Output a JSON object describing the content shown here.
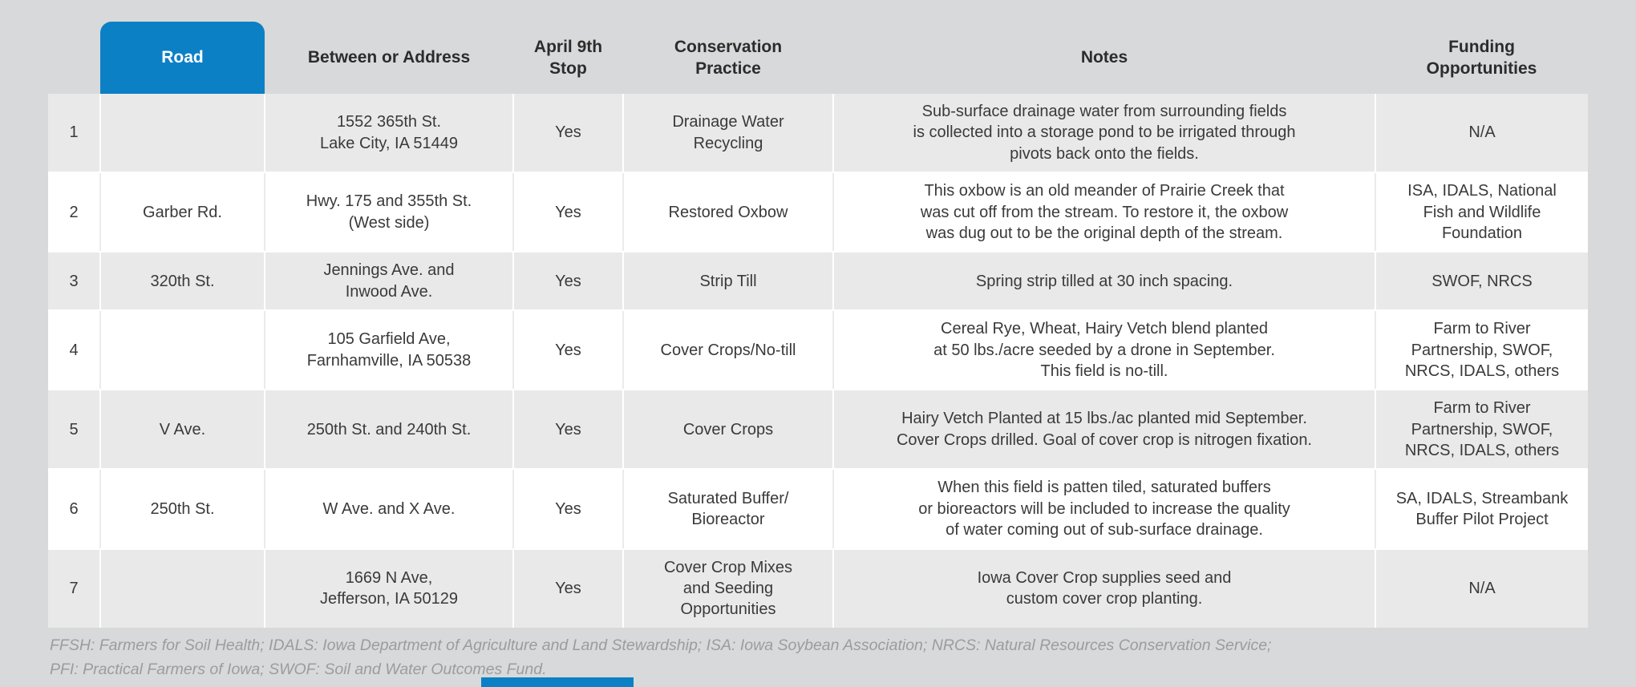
{
  "colors": {
    "page_bg": "#d8d9da",
    "row_odd_bg": "#e9e9e9",
    "row_even_bg": "#ffffff",
    "accent_blue": "#0b80c5",
    "header_text": "#2c2c2c",
    "cell_text": "#3a3a3a",
    "footnote_text": "#9b9c9e"
  },
  "table": {
    "header": {
      "num": "",
      "road": "Road",
      "between": "Between or Address",
      "stop": "April 9th\nStop",
      "practice": "Conservation\nPractice",
      "notes": "Notes",
      "funding": "Funding\nOpportunities"
    },
    "rows": [
      {
        "num": "1",
        "road": "",
        "between": "1552 365th St.\nLake City, IA 51449",
        "stop": "Yes",
        "practice": "Drainage Water\nRecycling",
        "notes": "Sub-surface drainage water from surrounding fields\nis collected into a storage pond to be irrigated through\npivots back onto the fields.",
        "funding": "N/A"
      },
      {
        "num": "2",
        "road": "Garber Rd.",
        "between": "Hwy. 175 and 355th St.\n(West side)",
        "stop": "Yes",
        "practice": "Restored Oxbow",
        "notes": "This oxbow is an old meander of Prairie Creek that\nwas cut off from the stream. To restore it, the oxbow\nwas dug out to be the original depth of the stream.",
        "funding": "ISA, IDALS, National\nFish and Wildlife\nFoundation"
      },
      {
        "num": "3",
        "road": "320th St.",
        "between": "Jennings Ave. and\nInwood Ave.",
        "stop": "Yes",
        "practice": "Strip Till",
        "notes": "Spring strip tilled at 30 inch spacing.",
        "funding": "SWOF, NRCS"
      },
      {
        "num": "4",
        "road": "",
        "between": "105 Garfield Ave,\nFarnhamville, IA 50538",
        "stop": "Yes",
        "practice": "Cover Crops/No-till",
        "notes": "Cereal Rye, Wheat, Hairy Vetch blend planted\nat 50 lbs./acre seeded by a drone in September.\nThis field is no-till.",
        "funding": "Farm to River\nPartnership, SWOF,\nNRCS, IDALS, others"
      },
      {
        "num": "5",
        "road": "V Ave.",
        "between": "250th St. and 240th St.",
        "stop": "Yes",
        "practice": "Cover Crops",
        "notes": "Hairy Vetch Planted at 15 lbs./ac planted mid September.\nCover Crops drilled. Goal of cover crop is nitrogen fixation.",
        "funding": "Farm to River\nPartnership, SWOF,\nNRCS, IDALS, others"
      },
      {
        "num": "6",
        "road": "250th St.",
        "between": "W Ave. and X Ave.",
        "stop": "Yes",
        "practice": "Saturated Buffer/\nBioreactor",
        "notes": "When this field is patten tiled, saturated buffers\nor bioreactors will be included to increase the quality\nof water coming out of sub-surface drainage.",
        "funding": "SA, IDALS, Streambank\nBuffer Pilot Project"
      },
      {
        "num": "7",
        "road": "",
        "between": "1669 N Ave,\nJefferson, IA 50129",
        "stop": "Yes",
        "practice": "Cover Crop Mixes\nand Seeding\nOpportunities",
        "notes": "Iowa Cover Crop supplies seed and\ncustom cover crop planting.",
        "funding": "N/A"
      }
    ]
  },
  "footnote": {
    "line1": "FFSH: Farmers for Soil Health; IDALS: Iowa Department of Agriculture and Land Stewardship; ISA: Iowa Soybean Association; NRCS: Natural Resources Conservation Service;",
    "line2": "PFI: Practical Farmers of Iowa; SWOF: Soil and Water Outcomes Fund."
  }
}
